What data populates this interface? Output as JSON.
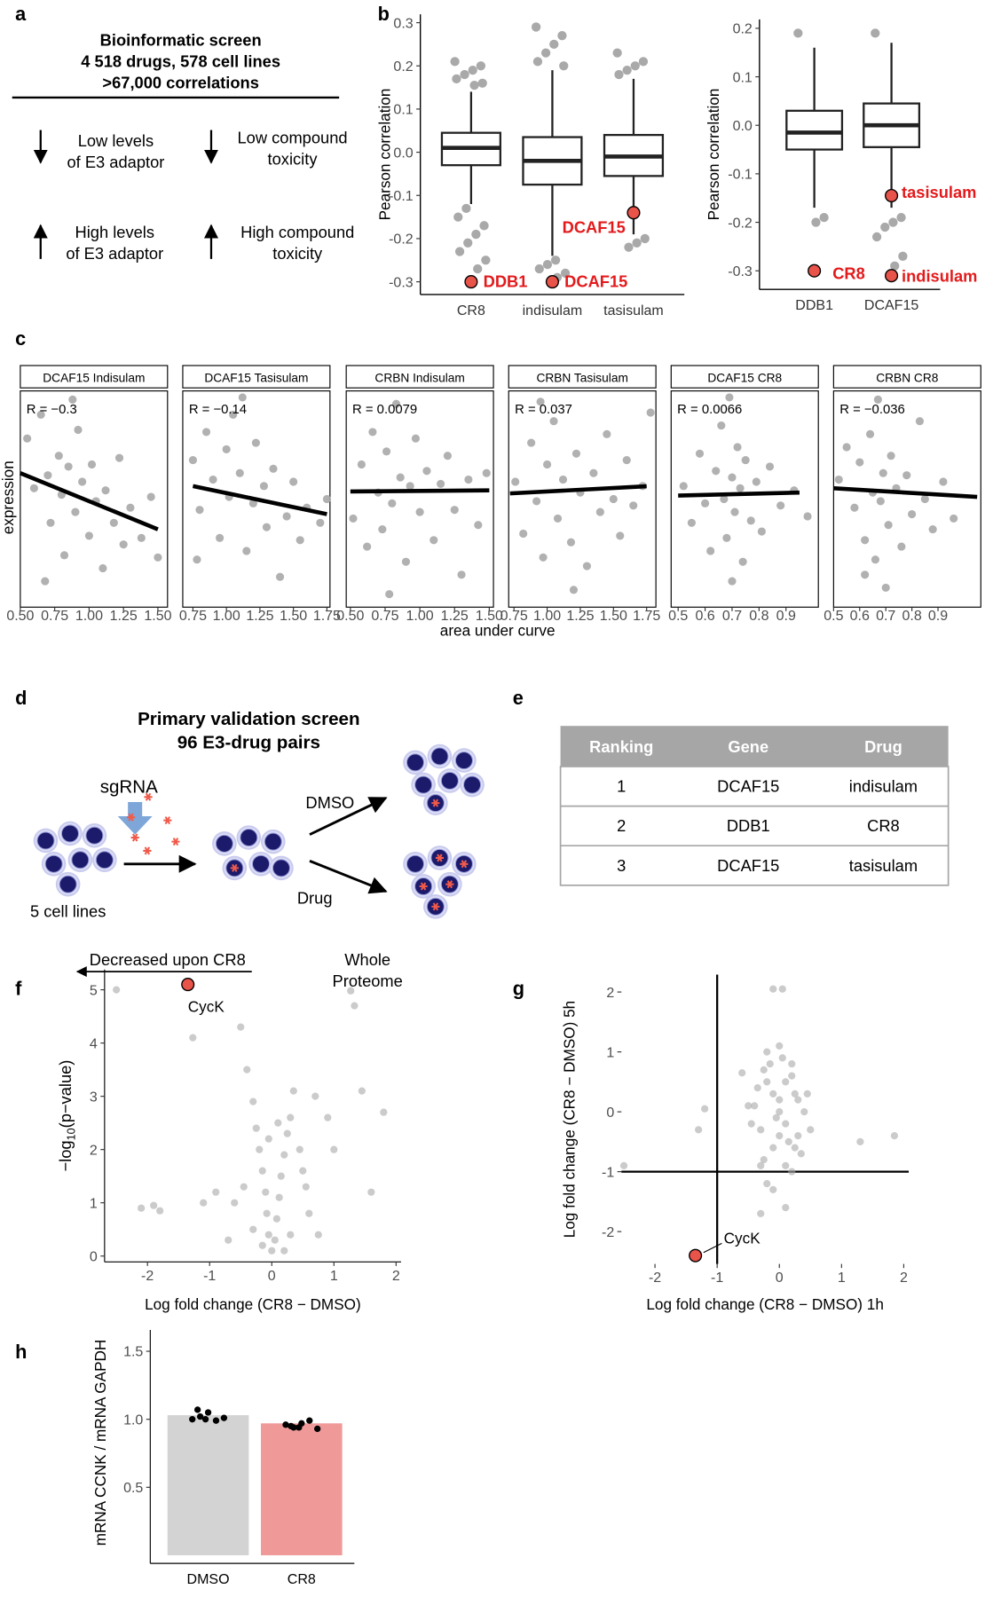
{
  "labels": [
    "a",
    "b",
    "c",
    "d",
    "e",
    "f",
    "g",
    "h"
  ],
  "panel_a": {
    "title_lines": [
      "Bioinformatic screen",
      "4 518 drugs, 578 cell lines",
      ">67,000 correlations"
    ],
    "items": [
      [
        "Low levels",
        "of E3 adaptor"
      ],
      [
        "Low compound",
        "toxicity"
      ],
      [
        "High levels",
        "of E3 adaptor"
      ],
      [
        "High compound",
        "toxicity"
      ]
    ]
  },
  "panel_c": {
    "xlabel": "area under curve",
    "ylabel": "expression"
  },
  "panel_d": {
    "title_lines": [
      "Primary validation screen",
      "96 E3-drug pairs"
    ],
    "sgrna": "sgRNA",
    "cells": "5 cell lines",
    "dmso": "DMSO",
    "drug": "Drug"
  },
  "table": {
    "header": [
      "Ranking",
      "Gene",
      "Drug"
    ],
    "rows": [
      [
        "1",
        "DCAF15",
        "indisulam"
      ],
      [
        "2",
        "DDB1",
        "CR8"
      ],
      [
        "3",
        "DCAF15",
        "tasisulam"
      ]
    ]
  },
  "chart_data": [
    {
      "type": "box",
      "ylabel": "Pearson correlation",
      "categories": [
        "CR8",
        "indisulam",
        "tasisulam"
      ],
      "ylim": [
        -0.32,
        0.31
      ],
      "yticks": [
        {
          "value": -0.3,
          "label": "-0.3"
        },
        {
          "value": -0.2,
          "label": "-0.2"
        },
        {
          "value": -0.1,
          "label": "-0.1"
        },
        {
          "value": 0,
          "label": "0.0"
        },
        {
          "value": 0.1,
          "label": "0.1"
        },
        {
          "value": 0.2,
          "label": "0.2"
        },
        {
          "value": 0.3,
          "label": "0.3"
        }
      ],
      "point_color": "#a9a9a9",
      "highlight_color": "#e8534a",
      "highlight_text_color": "#e31a1c",
      "boxes": [
        {
          "low": -0.12,
          "q1": -0.03,
          "median": 0.01,
          "q3": 0.045,
          "high": 0.14,
          "outliers": [
            0.21,
            0.2,
            0.19,
            0.18,
            0.17,
            0.16,
            0.155,
            -0.13,
            -0.15,
            -0.17,
            -0.19,
            -0.21,
            -0.23,
            -0.25,
            -0.27
          ],
          "highlights": [
            {
              "label": "DDB1",
              "value": -0.3
            }
          ]
        },
        {
          "low": -0.24,
          "q1": -0.075,
          "median": -0.02,
          "q3": 0.035,
          "high": 0.19,
          "outliers": [
            0.29,
            0.27,
            0.25,
            0.23,
            0.21,
            0.2,
            -0.25,
            -0.26,
            -0.27,
            -0.28,
            -0.29
          ],
          "highlights": [
            {
              "label": "DCAF15",
              "value": -0.3
            }
          ]
        },
        {
          "low": -0.19,
          "q1": -0.055,
          "median": -0.01,
          "q3": 0.04,
          "high": 0.17,
          "outliers": [
            0.23,
            0.21,
            0.2,
            0.19,
            0.18,
            -0.2,
            -0.21,
            -0.22
          ],
          "highlights": [
            {
              "label": "DCAF15",
              "value": -0.14
            }
          ]
        }
      ]
    },
    {
      "type": "box",
      "ylabel": "Pearson correlation",
      "categories": [
        "DDB1",
        "DCAF15"
      ],
      "ylim": [
        -0.33,
        0.21
      ],
      "yticks": [
        {
          "value": -0.3,
          "label": "-0.3"
        },
        {
          "value": -0.2,
          "label": "-0.2"
        },
        {
          "value": -0.1,
          "label": "-0.1"
        },
        {
          "value": 0,
          "label": "0.0"
        },
        {
          "value": 0.1,
          "label": "0.1"
        },
        {
          "value": 0.2,
          "label": "0.2"
        }
      ],
      "point_color": "#a9a9a9",
      "highlight_color": "#e8534a",
      "highlight_text_color": "#e31a1c",
      "boxes": [
        {
          "low": -0.17,
          "q1": -0.05,
          "median": -0.015,
          "q3": 0.03,
          "high": 0.16,
          "outliers": [
            0.19,
            -0.19,
            -0.2
          ],
          "highlights": [
            {
              "label": "CR8",
              "value": -0.3
            }
          ]
        },
        {
          "low": -0.17,
          "q1": -0.045,
          "median": 0,
          "q3": 0.045,
          "high": 0.17,
          "outliers": [
            0.19,
            -0.19,
            -0.2,
            -0.21,
            -0.23,
            -0.27,
            -0.29
          ],
          "highlights": [
            {
              "label": "tasisulam",
              "value": -0.145
            },
            {
              "label": "indisulam",
              "value": -0.31
            }
          ]
        }
      ]
    },
    {
      "type": "scatter",
      "title": "DCAF15 Indisulam",
      "annotation": "R = −0.3",
      "xlim": [
        0.5,
        1.57
      ],
      "ylim": [
        0,
        10
      ],
      "xticks": [
        {
          "value": 0.5,
          "label": "0.50"
        },
        {
          "value": 0.75,
          "label": "0.75"
        },
        {
          "value": 1,
          "label": "1.00"
        },
        {
          "value": 1.25,
          "label": "1.25"
        },
        {
          "value": 1.5,
          "label": "1.50"
        }
      ],
      "color": "#a9a9a9",
      "x": [
        0.55,
        0.6,
        0.65,
        0.7,
        0.72,
        0.78,
        0.8,
        0.82,
        0.85,
        0.9,
        0.92,
        0.95,
        1.0,
        1.02,
        1.05,
        1.1,
        1.12,
        1.18,
        1.22,
        1.25,
        1.3,
        1.38,
        1.45,
        1.5,
        0.68,
        0.88
      ],
      "values": [
        7.8,
        5.5,
        8.9,
        6.1,
        3.9,
        7.0,
        5.2,
        2.4,
        6.5,
        4.4,
        8.2,
        5.8,
        3.3,
        6.6,
        4.9,
        1.8,
        5.4,
        3.9,
        6.9,
        2.9,
        4.6,
        3.2,
        5.1,
        2.3,
        1.2,
        9.6
      ],
      "fit": {
        "x": [
          0.5,
          1.5
        ],
        "values": [
          6.2,
          3.6
        ]
      }
    },
    {
      "type": "scatter",
      "title": "DCAF15 Tasisulam",
      "annotation": "R = −0.14",
      "xlim": [
        0.674,
        1.773
      ],
      "ylim": [
        0,
        10
      ],
      "xticks": [
        {
          "value": 0.75,
          "label": "0.75"
        },
        {
          "value": 1,
          "label": "1.00"
        },
        {
          "value": 1.25,
          "label": "1.25"
        },
        {
          "value": 1.5,
          "label": "1.50"
        },
        {
          "value": 1.75,
          "label": "1.75"
        }
      ],
      "color": "#a9a9a9",
      "x": [
        0.75,
        0.8,
        0.85,
        0.9,
        0.95,
        1.0,
        1.02,
        1.05,
        1.1,
        1.15,
        1.2,
        1.22,
        1.28,
        1.3,
        1.35,
        1.4,
        1.45,
        1.5,
        1.55,
        1.6,
        1.7,
        1.75,
        0.78,
        1.12
      ],
      "values": [
        6.8,
        4.5,
        8.1,
        5.9,
        3.2,
        7.3,
        5.1,
        8.9,
        6.2,
        2.6,
        4.8,
        7.6,
        5.6,
        3.7,
        6.4,
        1.4,
        4.2,
        5.8,
        3.1,
        4.6,
        3.9,
        5.0,
        2.2,
        9.7
      ],
      "fit": {
        "x": [
          0.75,
          1.75
        ],
        "values": [
          5.6,
          4.3
        ]
      }
    },
    {
      "type": "scatter",
      "title": "CRBN Indisulam",
      "annotation": "R = 0.0079",
      "xlim": [
        0.47,
        1.53
      ],
      "ylim": [
        0,
        10
      ],
      "xticks": [
        {
          "value": 0.5,
          "label": "0.50"
        },
        {
          "value": 0.75,
          "label": "0.75"
        },
        {
          "value": 1,
          "label": "1.00"
        },
        {
          "value": 1.25,
          "label": "1.25"
        },
        {
          "value": 1.5,
          "label": "1.50"
        }
      ],
      "color": "#a9a9a9",
      "x": [
        0.52,
        0.58,
        0.62,
        0.66,
        0.7,
        0.73,
        0.76,
        0.8,
        0.83,
        0.86,
        0.9,
        0.93,
        0.97,
        1.0,
        1.05,
        1.1,
        1.15,
        1.2,
        1.25,
        1.3,
        1.35,
        1.42,
        1.48,
        0.78
      ],
      "values": [
        4.1,
        6.6,
        2.8,
        8.1,
        5.3,
        3.6,
        7.2,
        4.8,
        9.4,
        6.0,
        2.1,
        5.6,
        7.8,
        4.4,
        6.3,
        3.1,
        5.7,
        7.0,
        4.5,
        1.5,
        5.9,
        3.8,
        6.2,
        0.6
      ],
      "fit": {
        "x": [
          0.5,
          1.5
        ],
        "values": [
          5.35,
          5.4
        ]
      }
    },
    {
      "type": "scatter",
      "title": "CRBN Tasisulam",
      "annotation": "R = 0.037",
      "xlim": [
        0.71,
        1.82
      ],
      "ylim": [
        0,
        10
      ],
      "xticks": [
        {
          "value": 0.75,
          "label": "0.75"
        },
        {
          "value": 1,
          "label": "1.00"
        },
        {
          "value": 1.25,
          "label": "1.25"
        },
        {
          "value": 1.5,
          "label": "1.50"
        },
        {
          "value": 1.75,
          "label": "1.75"
        }
      ],
      "color": "#a9a9a9",
      "x": [
        0.76,
        0.82,
        0.88,
        0.92,
        0.97,
        1.0,
        1.05,
        1.08,
        1.12,
        1.18,
        1.22,
        1.25,
        1.3,
        1.35,
        1.4,
        1.45,
        1.5,
        1.55,
        1.6,
        1.65,
        1.72,
        1.78,
        0.95,
        1.2
      ],
      "values": [
        5.8,
        3.4,
        7.6,
        4.9,
        2.3,
        6.6,
        8.6,
        4.1,
        5.9,
        3.0,
        7.1,
        5.3,
        1.9,
        6.2,
        4.4,
        8.0,
        5.0,
        3.3,
        6.8,
        4.7,
        5.6,
        9.0,
        9.5,
        0.8
      ],
      "fit": {
        "x": [
          0.72,
          1.75
        ],
        "values": [
          5.26,
          5.59
        ]
      }
    },
    {
      "type": "scatter",
      "title": "DCAF15 CR8",
      "annotation": "R = 0.0066",
      "xlim": [
        0.474,
        1.02
      ],
      "ylim": [
        0,
        10
      ],
      "xticks": [
        0.5,
        0.6,
        0.7,
        0.8,
        0.9
      ],
      "color": "#a9a9a9",
      "x": [
        0.52,
        0.55,
        0.58,
        0.6,
        0.62,
        0.64,
        0.66,
        0.67,
        0.68,
        0.69,
        0.7,
        0.7,
        0.71,
        0.72,
        0.73,
        0.74,
        0.75,
        0.77,
        0.79,
        0.81,
        0.84,
        0.88,
        0.93,
        0.98
      ],
      "values": [
        5.6,
        3.9,
        7.1,
        4.8,
        2.6,
        6.3,
        8.4,
        5.0,
        3.2,
        9.7,
        6.0,
        1.2,
        4.4,
        7.4,
        5.5,
        2.1,
        6.8,
        4.0,
        5.8,
        3.5,
        6.5,
        4.7,
        5.4,
        4.2
      ],
      "fit": {
        "x": [
          0.5,
          0.95
        ],
        "values": [
          5.16,
          5.3
        ]
      }
    },
    {
      "type": "scatter",
      "title": "CRBN CR8",
      "annotation": "R = −0.036",
      "xlim": [
        0.5,
        1.064
      ],
      "ylim": [
        0,
        10
      ],
      "xticks": [
        0.5,
        0.6,
        0.7,
        0.8,
        0.9
      ],
      "color": "#a9a9a9",
      "x": [
        0.52,
        0.55,
        0.58,
        0.6,
        0.62,
        0.64,
        0.65,
        0.66,
        0.67,
        0.68,
        0.69,
        0.7,
        0.71,
        0.72,
        0.74,
        0.76,
        0.78,
        0.8,
        0.83,
        0.85,
        0.88,
        0.92,
        0.96,
        0.62
      ],
      "values": [
        5.9,
        7.4,
        4.6,
        6.7,
        3.1,
        8.0,
        5.3,
        2.2,
        9.6,
        4.9,
        6.2,
        0.9,
        3.8,
        7.0,
        5.5,
        2.8,
        6.1,
        4.3,
        8.6,
        5.0,
        3.6,
        5.8,
        4.1,
        1.5
      ],
      "fit": {
        "x": [
          0.5,
          1.05
        ],
        "values": [
          5.5,
          5.1
        ]
      }
    },
    {
      "type": "scatter",
      "xlabel": "Log fold change (CR8 − DMSO)",
      "ylabel_parts": [
        "−log",
        "10",
        "(p−value)"
      ],
      "annotations": [
        "Decreased upon CR8",
        "Whole",
        "Proteome"
      ],
      "xlim": [
        -2.69,
        2.08
      ],
      "ylim": [
        -0.11,
        5.38
      ],
      "xticks": [
        -2,
        -1,
        0,
        1,
        2
      ],
      "yticks": [
        0,
        1,
        2,
        3,
        4,
        5
      ],
      "color": "#a9a9a9",
      "x": [
        -2.5,
        -1.9,
        -2.1,
        -1.8,
        -1.1,
        -0.9,
        -0.6,
        -0.5,
        -0.4,
        -0.3,
        -0.25,
        -0.2,
        -0.15,
        -0.1,
        -0.08,
        -0.05,
        0,
        0.05,
        0.08,
        0.12,
        0.15,
        0.2,
        0.25,
        0.3,
        0.35,
        0.45,
        0.55,
        0.6,
        0.7,
        0.9,
        1.0,
        1.33,
        1.45,
        1.8,
        1.6,
        -0.3,
        0.3,
        -0.15,
        0.2,
        -0.7,
        0.75,
        -0.45,
        0.5,
        0.1,
        -0.05,
        -1.27,
        1.27
      ],
      "values": [
        5.0,
        0.95,
        0.9,
        0.85,
        1.0,
        1.2,
        1.0,
        4.3,
        3.5,
        2.9,
        2.4,
        2.0,
        1.6,
        1.2,
        0.8,
        0.4,
        0.1,
        0.3,
        0.7,
        1.1,
        1.5,
        1.9,
        2.3,
        2.6,
        3.1,
        2.0,
        1.3,
        0.8,
        3.0,
        2.6,
        2.0,
        4.7,
        3.1,
        2.7,
        1.2,
        0.5,
        0.4,
        0.2,
        0.1,
        0.3,
        0.4,
        1.3,
        1.6,
        2.5,
        2.2,
        4.1,
        4.98
      ],
      "highlights": [
        {
          "label": "CycK",
          "x": -1.35,
          "value": 5.1
        }
      ],
      "highlight_color": "#e8534a"
    },
    {
      "type": "scatter",
      "xlabel": "Log fold change (CR8 − DMSO) 1h",
      "ylabel": "Log fold change (CR8 − DMSO) 5h",
      "xlim": [
        -2.54,
        2.08
      ],
      "ylim": [
        -2.54,
        2.29
      ],
      "xticks": [
        -2,
        -1,
        0,
        1,
        2
      ],
      "yticks": [
        -2,
        -1,
        0,
        1,
        2
      ],
      "color": "#a9a9a9",
      "ref_x": -1,
      "ref_y": -1,
      "x": [
        -0.4,
        -0.3,
        -0.2,
        -0.1,
        0,
        0.1,
        0.2,
        0.3,
        0.4,
        -0.35,
        -0.25,
        -0.15,
        -0.05,
        0.05,
        0.15,
        0.25,
        0.35,
        -0.3,
        -0.2,
        -0.1,
        0,
        0.1,
        0.2,
        0.3,
        -0.45,
        0.45,
        -0.2,
        0,
        0.2,
        -0.1,
        0.1,
        -0.25,
        0.25,
        0,
        -0.5,
        0.5,
        -2.5,
        -1.2,
        -1.3,
        -0.6,
        1.85,
        1.3,
        -0.1,
        0.05,
        -0.3,
        0.1
      ],
      "values": [
        0.1,
        -0.3,
        0.5,
        -0.6,
        0.2,
        -0.2,
        0.6,
        -0.4,
        0.0,
        0.4,
        -0.8,
        0.8,
        -0.1,
        0.9,
        -0.5,
        0.3,
        -0.7,
        -0.9,
        1.0,
        0.3,
        -0.4,
        0.5,
        -1.0,
        0.2,
        -0.2,
        0.3,
        -1.2,
        1.1,
        0.8,
        -1.3,
        -0.9,
        0.7,
        -0.6,
        0.0,
        0.1,
        -0.3,
        -0.9,
        0.05,
        -0.3,
        0.65,
        -0.4,
        -0.5,
        2.05,
        2.05,
        -1.7,
        -1.6
      ],
      "highlights": [
        {
          "label": "CycK",
          "x": -1.35,
          "value": -2.4
        }
      ],
      "highlight_color": "#e8534a"
    },
    {
      "type": "bar",
      "ylabel": "mRNA CCNK / mRNA GAPDH",
      "categories": [
        "DMSO",
        "CR8"
      ],
      "values": [
        1.03,
        0.97
      ],
      "colors": [
        "#d3d3d3",
        "#f09999"
      ],
      "points": [
        [
          1.0,
          1.02,
          1.05,
          0.99,
          1.01,
          1.07,
          1.0
        ],
        [
          0.96,
          0.94,
          0.97,
          0.99,
          0.93,
          0.95,
          0.94
        ]
      ],
      "ylim": [
        0,
        1.657
      ],
      "yticks": [
        0.5,
        {
          "value": 1,
          "label": "1.0"
        },
        1.5
      ]
    }
  ]
}
